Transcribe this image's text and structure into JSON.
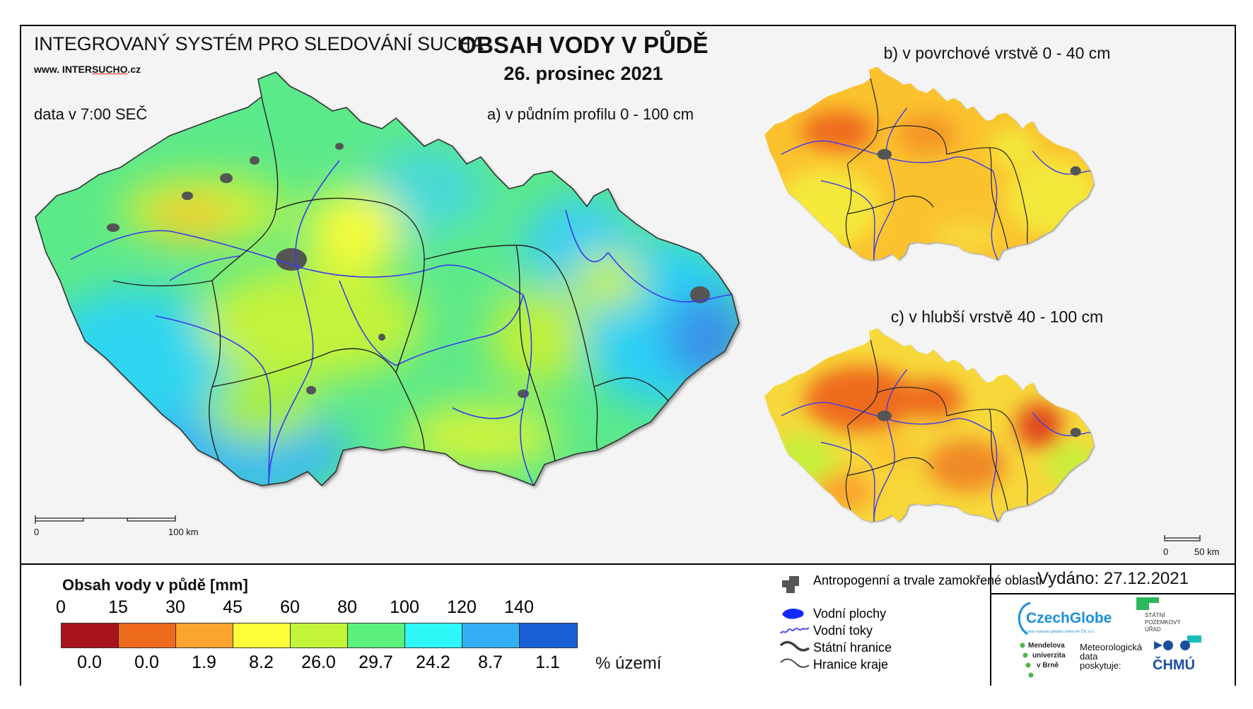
{
  "header": {
    "system_title": "INTEGROVANÝ SYSTÉM PRO SLEDOVÁNÍ SUCHA",
    "website_prefix": "www. INTER",
    "website_highlight": "SUCHO",
    "website_suffix": ".cz",
    "data_time": "data v 7:00 SEČ",
    "main_title": "OBSAH VODY V PŮDĚ",
    "main_date": "26. prosinec 2021"
  },
  "maps": {
    "a_title": "a) v půdním profilu 0 - 100 cm",
    "b_title": "b) v povrchové vrstvě 0 - 40 cm",
    "c_title": "c) v hlubší vrstvě 40 - 100 cm",
    "scale_main": {
      "start": "0",
      "end": "100 km"
    },
    "scale_small": {
      "start": "0",
      "end": "50 km"
    }
  },
  "legend": {
    "title": "Obsah vody v půdě  [mm]",
    "ticks": [
      "0",
      "15",
      "30",
      "45",
      "60",
      "80",
      "100",
      "120",
      "140"
    ],
    "colors": [
      "#a8141b",
      "#ee6a1d",
      "#fba52e",
      "#ffff3a",
      "#c2f53a",
      "#5cf07d",
      "#2ef7f7",
      "#33aef5",
      "#1a5ed4"
    ],
    "percentages": [
      "0.0",
      "0.0",
      "1.9",
      "8.2",
      "26.0",
      "29.7",
      "24.2",
      "8.7",
      "1.1"
    ],
    "percent_unit": "% území"
  },
  "symbols": {
    "anthropogenic": "Antropogenní a trvale zamokřené oblasti",
    "water_bodies": "Vodní plochy",
    "water_streams": "Vodní toky",
    "state_border": "Státní hranice",
    "region_border": "Hranice kraje"
  },
  "footer": {
    "issued": "Vydáno: 27.12.2021",
    "czechglobe": "CzechGlobe",
    "czechglobe_sub": "Ústav výzkumu globální změny AV ČR, v.v.i.",
    "spu_line1": "STÁTNÍ",
    "spu_line2": "POZEMKOVÝ",
    "spu_line3": "ÚŘAD",
    "mendel_line1": "Mendelova",
    "mendel_line2": "univerzita",
    "mendel_line3": "v Brně",
    "met_line1": "Meteorologická",
    "met_line2": "data",
    "met_line3": "poskytuje:",
    "chmu": "ČHMÚ"
  }
}
